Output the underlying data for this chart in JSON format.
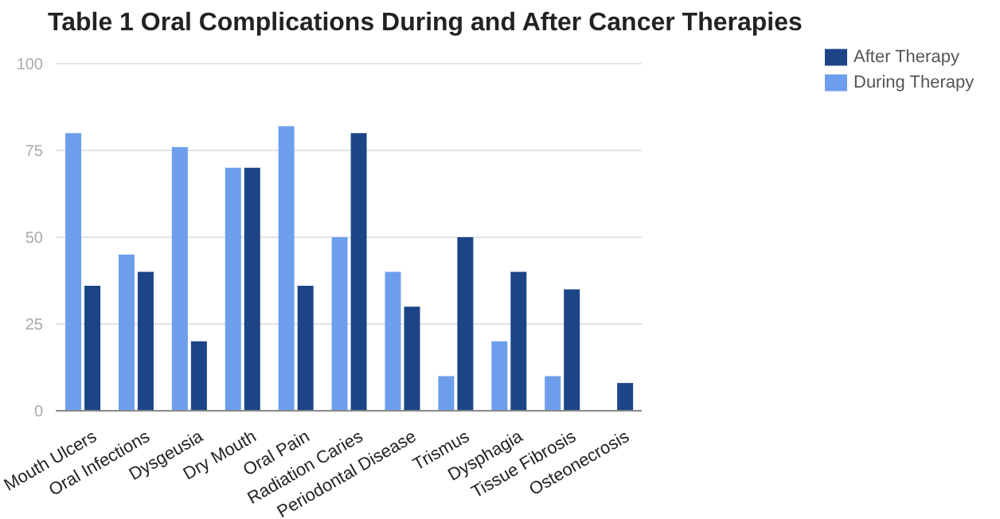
{
  "chart_data": {
    "type": "bar",
    "title": "Table 1 Oral Complications During and After Cancer Therapies",
    "categories": [
      "Mouth Ulcers",
      "Oral Infections",
      "Dysgeusia",
      "Dry Mouth",
      "Oral Pain",
      "Radiation Caries",
      "Periodontal Disease",
      "Trismus",
      "Dysphagia",
      "Tissue Fibrosis",
      "Osteonecrosis"
    ],
    "series": [
      {
        "name": "During Therapy",
        "color": "#6d9eeb",
        "values": [
          80,
          45,
          76,
          70,
          82,
          50,
          40,
          10,
          20,
          10,
          null
        ]
      },
      {
        "name": "After Therapy",
        "color": "#1c4587",
        "values": [
          36,
          40,
          20,
          70,
          36,
          80,
          30,
          50,
          40,
          35,
          8
        ]
      }
    ],
    "ylim": [
      0,
      100
    ],
    "yticks": [
      0,
      25,
      50,
      75,
      100
    ],
    "grid": "y",
    "legend": "top right"
  }
}
